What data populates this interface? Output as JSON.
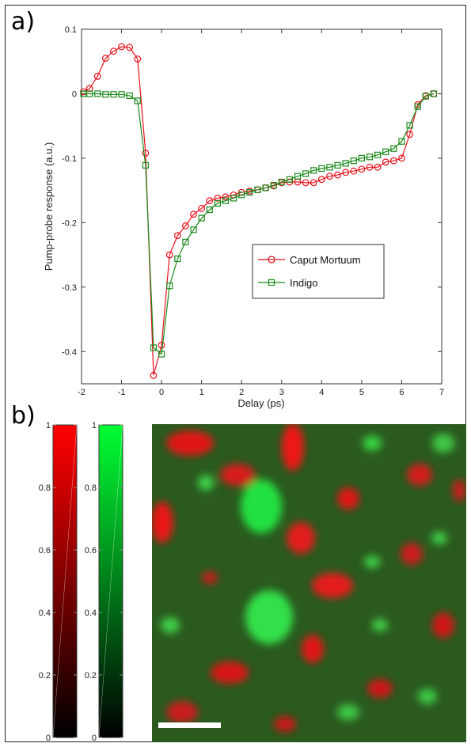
{
  "panels": {
    "a_label": "a)",
    "b_label": "b)"
  },
  "chart_data": {
    "type": "line",
    "xlabel": "Delay (ps)",
    "ylabel": "Pump-probe response (a.u.)",
    "xlim": [
      -2,
      7
    ],
    "ylim": [
      -0.45,
      0.1
    ],
    "xticks": [
      -2,
      -1,
      0,
      1,
      2,
      3,
      4,
      5,
      6,
      7
    ],
    "yticks": [
      0.1,
      0,
      -0.1,
      -0.2,
      -0.3,
      -0.4
    ],
    "xtick_labels": [
      "-2",
      "-1",
      "0",
      "1",
      "2",
      "3",
      "4",
      "5",
      "6",
      "7"
    ],
    "ytick_labels": [
      "0.1",
      "0",
      "-0.1",
      "-0.2",
      "-0.3",
      "-0.4"
    ],
    "grid": false,
    "legend_position": "center-right",
    "series": [
      {
        "name": "Caput Mortuum",
        "color": "#e8101a",
        "marker": "circle",
        "x": [
          -1.95,
          -1.8,
          -1.6,
          -1.4,
          -1.2,
          -1.0,
          -0.8,
          -0.6,
          -0.4,
          -0.2,
          0.0,
          0.2,
          0.4,
          0.6,
          0.8,
          1.0,
          1.2,
          1.4,
          1.6,
          1.8,
          2.0,
          2.2,
          2.4,
          2.6,
          2.8,
          3.0,
          3.2,
          3.4,
          3.6,
          3.8,
          4.0,
          4.2,
          4.4,
          4.6,
          4.8,
          5.0,
          5.2,
          5.4,
          5.6,
          5.8,
          6.0,
          6.2,
          6.4,
          6.6,
          6.8
        ],
        "y": [
          0.003,
          0.008,
          0.027,
          0.055,
          0.066,
          0.073,
          0.072,
          0.054,
          -0.092,
          -0.437,
          -0.39,
          -0.25,
          -0.22,
          -0.205,
          -0.187,
          -0.178,
          -0.166,
          -0.162,
          -0.16,
          -0.157,
          -0.153,
          -0.151,
          -0.149,
          -0.146,
          -0.143,
          -0.138,
          -0.137,
          -0.137,
          -0.138,
          -0.138,
          -0.133,
          -0.128,
          -0.126,
          -0.122,
          -0.12,
          -0.117,
          -0.114,
          -0.114,
          -0.106,
          -0.104,
          -0.1,
          -0.063,
          -0.017,
          -0.003,
          0.0
        ]
      },
      {
        "name": "Indigo",
        "color": "#1a8a1a",
        "marker": "square",
        "x": [
          -1.95,
          -1.8,
          -1.6,
          -1.4,
          -1.2,
          -1.0,
          -0.8,
          -0.6,
          -0.4,
          -0.2,
          0.0,
          0.2,
          0.4,
          0.6,
          0.8,
          1.0,
          1.2,
          1.4,
          1.6,
          1.8,
          2.0,
          2.2,
          2.4,
          2.6,
          2.8,
          3.0,
          3.2,
          3.4,
          3.6,
          3.8,
          4.0,
          4.2,
          4.4,
          4.6,
          4.8,
          5.0,
          5.2,
          5.4,
          5.6,
          5.8,
          6.0,
          6.2,
          6.4,
          6.6,
          6.8
        ],
        "y": [
          0.0,
          0.0,
          0.0,
          -0.001,
          -0.001,
          -0.001,
          -0.003,
          -0.011,
          -0.111,
          -0.394,
          -0.404,
          -0.298,
          -0.256,
          -0.23,
          -0.211,
          -0.193,
          -0.18,
          -0.17,
          -0.166,
          -0.162,
          -0.157,
          -0.153,
          -0.149,
          -0.146,
          -0.142,
          -0.137,
          -0.133,
          -0.128,
          -0.124,
          -0.119,
          -0.116,
          -0.114,
          -0.111,
          -0.108,
          -0.104,
          -0.1,
          -0.098,
          -0.095,
          -0.09,
          -0.085,
          -0.074,
          -0.049,
          -0.02,
          -0.004,
          0.0
        ]
      }
    ]
  },
  "colorbars": {
    "red": {
      "color": "#ff0000",
      "ticks": [
        "0",
        "0.2",
        "0.4",
        "0.6",
        "0.8",
        "1"
      ],
      "values": [
        0,
        0.2,
        0.4,
        0.6,
        0.8,
        1
      ]
    },
    "green": {
      "color": "#00ff33",
      "ticks": [
        "0",
        "0.2",
        "0.4",
        "0.6",
        "0.8",
        "1"
      ],
      "values": [
        0,
        0.2,
        0.4,
        0.6,
        0.8,
        1
      ]
    }
  },
  "image": {
    "base_color": "#2a5a1e",
    "scale_bar_color": "#ffffff"
  }
}
